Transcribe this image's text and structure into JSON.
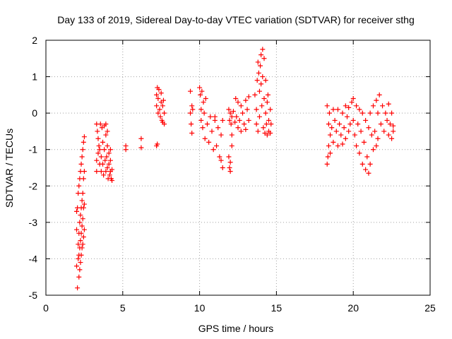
{
  "chart_data": {
    "type": "scatter",
    "title": "Day 133 of 2019, Sidereal Day-to-day VTEC variation (SDTVAR) for receiver sthg",
    "xlabel": "GPS time / hours",
    "ylabel": "SDTVAR / TECUs",
    "xlim": [
      0,
      25
    ],
    "ylim": [
      -5,
      2
    ],
    "xticks": [
      0,
      5,
      10,
      15,
      20,
      25
    ],
    "yticks": [
      -5,
      -4,
      -3,
      -2,
      -1,
      0,
      1,
      2
    ],
    "grid": true,
    "marker": "plus",
    "color": "#ff0000",
    "series": [
      {
        "name": "sthg",
        "points": [
          [
            2.0,
            -2.7
          ],
          [
            2.0,
            -3.2
          ],
          [
            2.0,
            -4.2
          ],
          [
            2.05,
            -4.8
          ],
          [
            2.05,
            -2.6
          ],
          [
            2.1,
            -4.0
          ],
          [
            2.1,
            -3.6
          ],
          [
            2.1,
            -2.2
          ],
          [
            2.15,
            -4.5
          ],
          [
            2.15,
            -3.9
          ],
          [
            2.15,
            -3.3
          ],
          [
            2.15,
            -2.0
          ],
          [
            2.2,
            -4.3
          ],
          [
            2.2,
            -3.7
          ],
          [
            2.2,
            -3.0
          ],
          [
            2.2,
            -1.8
          ],
          [
            2.25,
            -4.1
          ],
          [
            2.25,
            -3.5
          ],
          [
            2.25,
            -2.8
          ],
          [
            2.25,
            -1.6
          ],
          [
            2.3,
            -3.9
          ],
          [
            2.3,
            -3.3
          ],
          [
            2.3,
            -2.6
          ],
          [
            2.3,
            -1.4
          ],
          [
            2.35,
            -3.7
          ],
          [
            2.35,
            -3.1
          ],
          [
            2.35,
            -2.4
          ],
          [
            2.35,
            -1.2
          ],
          [
            2.4,
            -3.6
          ],
          [
            2.4,
            -2.9
          ],
          [
            2.4,
            -2.2
          ],
          [
            2.4,
            -1.0
          ],
          [
            2.45,
            -3.4
          ],
          [
            2.45,
            -2.6
          ],
          [
            2.45,
            -1.8
          ],
          [
            2.45,
            -0.8
          ],
          [
            2.5,
            -3.2
          ],
          [
            2.5,
            -2.5
          ],
          [
            2.5,
            -1.6
          ],
          [
            2.5,
            -0.65
          ],
          [
            3.3,
            -0.3
          ],
          [
            3.3,
            -1.3
          ],
          [
            3.3,
            -1.6
          ],
          [
            3.35,
            -0.5
          ],
          [
            3.4,
            -0.7
          ],
          [
            3.4,
            -1.1
          ],
          [
            3.45,
            -0.9
          ],
          [
            3.5,
            -1.0
          ],
          [
            3.5,
            -1.4
          ],
          [
            3.55,
            -0.3
          ],
          [
            3.6,
            -1.2
          ],
          [
            3.6,
            -1.6
          ],
          [
            3.65,
            -0.4
          ],
          [
            3.7,
            -0.8
          ],
          [
            3.7,
            -1.4
          ],
          [
            3.75,
            -1.7
          ],
          [
            3.8,
            -0.35
          ],
          [
            3.8,
            -1.0
          ],
          [
            3.85,
            -1.3
          ],
          [
            3.9,
            -0.6
          ],
          [
            3.9,
            -1.6
          ],
          [
            3.95,
            -1.2
          ],
          [
            4.0,
            -0.9
          ],
          [
            4.0,
            -1.5
          ],
          [
            4.05,
            -1.8
          ],
          [
            4.1,
            -1.1
          ],
          [
            4.1,
            -1.4
          ],
          [
            4.15,
            -1.7
          ],
          [
            4.2,
            -1.3
          ],
          [
            4.2,
            -1.6
          ],
          [
            4.25,
            -1.8
          ],
          [
            4.3,
            -1.55
          ],
          [
            4.3,
            -1.85
          ],
          [
            4.0,
            -0.5
          ],
          [
            3.9,
            -0.3
          ],
          [
            4.2,
            -1.0
          ],
          [
            5.2,
            -0.9
          ],
          [
            5.2,
            -1.0
          ],
          [
            6.2,
            -0.7
          ],
          [
            6.2,
            -0.95
          ],
          [
            7.2,
            -0.9
          ],
          [
            7.25,
            -0.85
          ],
          [
            7.2,
            0.5
          ],
          [
            7.2,
            0.2
          ],
          [
            7.25,
            0.7
          ],
          [
            7.3,
            0.0
          ],
          [
            7.3,
            0.4
          ],
          [
            7.35,
            0.65
          ],
          [
            7.4,
            0.1
          ],
          [
            7.45,
            -0.1
          ],
          [
            7.5,
            0.55
          ],
          [
            7.5,
            0.3
          ],
          [
            7.55,
            -0.2
          ],
          [
            7.6,
            0.2
          ],
          [
            7.6,
            -0.25
          ],
          [
            7.65,
            0.35
          ],
          [
            7.7,
            -0.3
          ],
          [
            7.7,
            0.0
          ],
          [
            9.4,
            0.6
          ],
          [
            9.4,
            0.0
          ],
          [
            9.45,
            -0.3
          ],
          [
            9.5,
            0.2
          ],
          [
            9.5,
            -0.55
          ],
          [
            9.55,
            0.1
          ],
          [
            10.0,
            0.7
          ],
          [
            10.05,
            0.5
          ],
          [
            10.1,
            0.1
          ],
          [
            10.1,
            -0.2
          ],
          [
            10.15,
            0.6
          ],
          [
            10.2,
            -0.4
          ],
          [
            10.25,
            0.3
          ],
          [
            10.3,
            0.0
          ],
          [
            10.35,
            -0.7
          ],
          [
            10.4,
            0.4
          ],
          [
            10.5,
            -0.3
          ],
          [
            10.6,
            -0.8
          ],
          [
            10.7,
            -0.1
          ],
          [
            10.8,
            -0.5
          ],
          [
            10.9,
            -1.0
          ],
          [
            11.0,
            -0.2
          ],
          [
            11.1,
            -0.9
          ],
          [
            11.2,
            -0.4
          ],
          [
            11.3,
            -1.2
          ],
          [
            11.4,
            -0.6
          ],
          [
            11.5,
            -1.5
          ],
          [
            11.5,
            -0.2
          ],
          [
            11.4,
            -1.3
          ],
          [
            11.0,
            -0.1
          ],
          [
            11.9,
            -1.2
          ],
          [
            11.95,
            -1.5
          ],
          [
            12.0,
            -1.35
          ],
          [
            12.0,
            -1.6
          ],
          [
            12.1,
            -0.9
          ],
          [
            12.1,
            -0.6
          ],
          [
            11.9,
            0.1
          ],
          [
            11.95,
            -0.2
          ],
          [
            12.0,
            0.0
          ],
          [
            12.05,
            -0.3
          ],
          [
            12.1,
            -0.1
          ],
          [
            12.2,
            0.05
          ],
          [
            12.3,
            -0.25
          ],
          [
            12.35,
            0.4
          ],
          [
            12.4,
            -0.1
          ],
          [
            12.5,
            0.3
          ],
          [
            12.5,
            -0.4
          ],
          [
            12.6,
            -0.2
          ],
          [
            12.7,
            0.2
          ],
          [
            12.7,
            -0.5
          ],
          [
            12.8,
            0.0
          ],
          [
            12.9,
            -0.3
          ],
          [
            13.0,
            0.35
          ],
          [
            13.0,
            -0.45
          ],
          [
            13.1,
            0.1
          ],
          [
            13.2,
            -0.2
          ],
          [
            13.2,
            0.45
          ],
          [
            13.6,
            0.5
          ],
          [
            13.7,
            0.1
          ],
          [
            13.7,
            -0.3
          ],
          [
            13.75,
            0.9
          ],
          [
            13.8,
            1.4
          ],
          [
            13.8,
            -0.5
          ],
          [
            13.85,
            1.1
          ],
          [
            13.9,
            0.6
          ],
          [
            13.9,
            -0.1
          ],
          [
            13.95,
            1.3
          ],
          [
            14.0,
            1.6
          ],
          [
            14.0,
            0.8
          ],
          [
            14.05,
            0.2
          ],
          [
            14.1,
            1.75
          ],
          [
            14.1,
            1.0
          ],
          [
            14.15,
            -0.4
          ],
          [
            14.2,
            1.5
          ],
          [
            14.2,
            0.4
          ],
          [
            14.25,
            -0.55
          ],
          [
            14.3,
            0.9
          ],
          [
            14.3,
            0.0
          ],
          [
            14.35,
            -0.3
          ],
          [
            14.4,
            0.3
          ],
          [
            14.4,
            -0.6
          ],
          [
            14.45,
            0.5
          ],
          [
            14.5,
            -0.2
          ],
          [
            14.5,
            -0.5
          ],
          [
            14.6,
            0.1
          ],
          [
            14.6,
            -0.55
          ],
          [
            14.65,
            -0.3
          ],
          [
            18.3,
            -1.4
          ],
          [
            18.3,
            0.2
          ],
          [
            18.35,
            -1.2
          ],
          [
            18.4,
            -0.3
          ],
          [
            18.4,
            -0.9
          ],
          [
            18.45,
            0.0
          ],
          [
            18.5,
            -0.6
          ],
          [
            18.5,
            -1.1
          ],
          [
            18.6,
            -0.4
          ],
          [
            18.7,
            0.1
          ],
          [
            18.7,
            -0.8
          ],
          [
            18.8,
            -0.2
          ],
          [
            18.9,
            -0.5
          ],
          [
            19.0,
            0.1
          ],
          [
            19.0,
            -0.9
          ],
          [
            19.1,
            -0.3
          ],
          [
            19.2,
            -0.6
          ],
          [
            19.3,
            0.0
          ],
          [
            19.3,
            -0.85
          ],
          [
            19.4,
            -0.4
          ],
          [
            19.5,
            0.2
          ],
          [
            19.5,
            -0.7
          ],
          [
            19.6,
            -0.1
          ],
          [
            19.7,
            0.15
          ],
          [
            19.7,
            -0.5
          ],
          [
            19.8,
            -0.3
          ],
          [
            19.9,
            0.3
          ],
          [
            20.0,
            -0.2
          ],
          [
            20.0,
            0.4
          ],
          [
            20.1,
            -0.6
          ],
          [
            20.2,
            0.2
          ],
          [
            20.2,
            -0.9
          ],
          [
            20.3,
            -0.3
          ],
          [
            20.4,
            0.1
          ],
          [
            20.4,
            -1.1
          ],
          [
            20.5,
            -0.5
          ],
          [
            20.6,
            -1.4
          ],
          [
            20.6,
            0.0
          ],
          [
            20.7,
            -0.8
          ],
          [
            20.8,
            -1.55
          ],
          [
            20.8,
            -0.2
          ],
          [
            20.9,
            -1.2
          ],
          [
            21.0,
            -1.65
          ],
          [
            21.0,
            -0.4
          ],
          [
            21.1,
            0.0
          ],
          [
            21.1,
            -1.4
          ],
          [
            21.2,
            -0.6
          ],
          [
            21.3,
            -1.0
          ],
          [
            21.3,
            0.2
          ],
          [
            21.4,
            -0.5
          ],
          [
            21.5,
            -0.9
          ],
          [
            21.5,
            0.35
          ],
          [
            21.6,
            0.0
          ],
          [
            21.6,
            -0.7
          ],
          [
            21.7,
            0.5
          ],
          [
            21.8,
            -0.3
          ],
          [
            21.9,
            0.2
          ],
          [
            22.0,
            -0.5
          ],
          [
            22.1,
            0.0
          ],
          [
            22.2,
            -0.2
          ],
          [
            22.3,
            0.25
          ],
          [
            22.3,
            -0.6
          ],
          [
            22.4,
            -0.3
          ],
          [
            22.5,
            -0.7
          ],
          [
            22.5,
            0.0
          ],
          [
            22.6,
            -0.5
          ],
          [
            22.6,
            -0.35
          ]
        ]
      }
    ]
  }
}
